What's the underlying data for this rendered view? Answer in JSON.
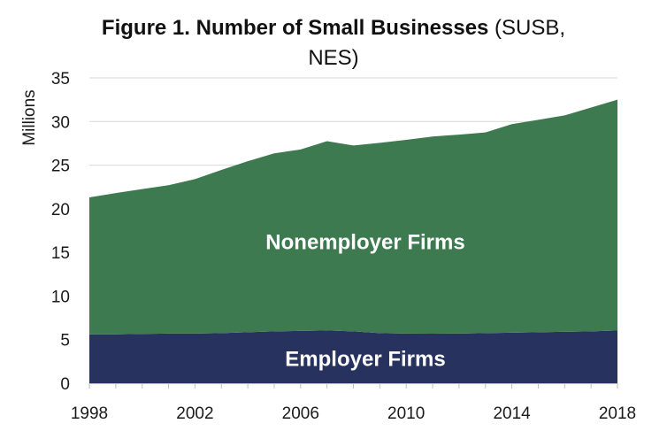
{
  "chart_data": {
    "type": "area",
    "stacked": true,
    "title_bold": "Figure 1. Number of Small Businesses",
    "title_rest_line1": " (SUSB,",
    "title_line2": "NES)",
    "ylabel": "Millions",
    "xlabel": "",
    "xlim": [
      1998,
      2018
    ],
    "ylim": [
      0,
      35
    ],
    "x_ticks": [
      1998,
      2002,
      2006,
      2010,
      2014,
      2018
    ],
    "y_ticks": [
      0,
      5,
      10,
      15,
      20,
      25,
      30,
      35
    ],
    "x": [
      1998,
      1999,
      2000,
      2001,
      2002,
      2003,
      2004,
      2005,
      2006,
      2007,
      2008,
      2009,
      2010,
      2011,
      2012,
      2013,
      2014,
      2015,
      2016,
      2017,
      2018
    ],
    "series": [
      {
        "name": "Employer Firms",
        "color": "#27325f",
        "values": [
          5.6,
          5.6,
          5.65,
          5.7,
          5.7,
          5.75,
          5.85,
          5.95,
          6.0,
          6.05,
          5.95,
          5.75,
          5.7,
          5.68,
          5.7,
          5.75,
          5.8,
          5.85,
          5.9,
          5.95,
          6.05
        ]
      },
      {
        "name": "Nonemployer Firms",
        "color": "#3e7a50",
        "values": [
          15.7,
          16.2,
          16.6,
          17.0,
          17.7,
          18.7,
          19.6,
          20.4,
          20.8,
          21.7,
          21.3,
          21.8,
          22.2,
          22.6,
          22.8,
          23.0,
          23.9,
          24.35,
          24.8,
          25.65,
          26.45
        ]
      }
    ],
    "grid": "horizontal",
    "gridline_color": "#d9d9d9",
    "legend": "none (labels inside areas)"
  }
}
